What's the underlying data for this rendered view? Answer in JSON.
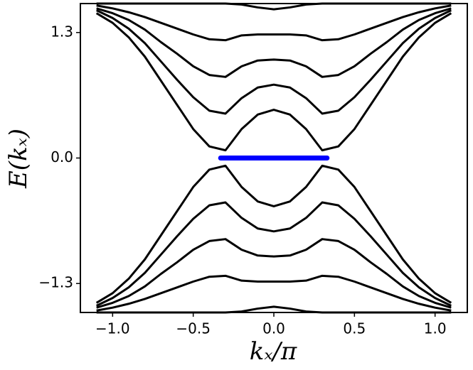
{
  "chart_data": {
    "type": "line",
    "xlabel": "kₓ/π",
    "ylabel": "E(kₓ)",
    "x": [
      -1.1,
      -1.0,
      -0.9,
      -0.8,
      -0.7,
      -0.6,
      -0.5,
      -0.4,
      -0.3,
      -0.2,
      -0.1,
      0.0,
      0.1,
      0.2,
      0.3,
      0.4,
      0.5,
      0.6,
      0.7,
      0.8,
      0.9,
      1.0,
      1.1
    ],
    "series": [
      {
        "color": "#000000",
        "values": [
          1.5,
          1.4,
          1.25,
          1.05,
          0.8,
          0.55,
          0.3,
          0.12,
          0.08,
          0.3,
          0.45,
          0.5,
          0.45,
          0.3,
          0.08,
          0.12,
          0.3,
          0.55,
          0.8,
          1.05,
          1.25,
          1.4,
          1.5
        ]
      },
      {
        "color": "#000000",
        "values": [
          1.53,
          1.45,
          1.34,
          1.19,
          1.0,
          0.81,
          0.63,
          0.49,
          0.46,
          0.62,
          0.73,
          0.76,
          0.73,
          0.62,
          0.46,
          0.49,
          0.63,
          0.81,
          1.0,
          1.19,
          1.34,
          1.45,
          1.53
        ]
      },
      {
        "color": "#000000",
        "values": [
          1.55,
          1.5,
          1.43,
          1.33,
          1.2,
          1.08,
          0.95,
          0.86,
          0.84,
          0.95,
          1.01,
          1.02,
          1.01,
          0.95,
          0.84,
          0.86,
          0.95,
          1.08,
          1.2,
          1.33,
          1.43,
          1.5,
          1.55
        ]
      },
      {
        "color": "#000000",
        "values": [
          1.58,
          1.55,
          1.51,
          1.46,
          1.4,
          1.34,
          1.28,
          1.23,
          1.22,
          1.27,
          1.28,
          1.28,
          1.28,
          1.27,
          1.22,
          1.23,
          1.28,
          1.34,
          1.4,
          1.46,
          1.51,
          1.55,
          1.58
        ]
      },
      {
        "color": "#000000",
        "values": [
          1.6,
          1.6,
          1.6,
          1.6,
          1.6,
          1.6,
          1.6,
          1.6,
          1.6,
          1.59,
          1.56,
          1.54,
          1.56,
          1.59,
          1.6,
          1.6,
          1.6,
          1.6,
          1.6,
          1.6,
          1.6,
          1.6,
          1.6
        ]
      },
      {
        "color": "#000000",
        "values": [
          -1.5,
          -1.4,
          -1.25,
          -1.05,
          -0.8,
          -0.55,
          -0.3,
          -0.12,
          -0.08,
          -0.3,
          -0.45,
          -0.5,
          -0.45,
          -0.3,
          -0.08,
          -0.12,
          -0.3,
          -0.55,
          -0.8,
          -1.05,
          -1.25,
          -1.4,
          -1.5
        ]
      },
      {
        "color": "#000000",
        "values": [
          -1.53,
          -1.45,
          -1.34,
          -1.19,
          -1.0,
          -0.81,
          -0.63,
          -0.49,
          -0.46,
          -0.62,
          -0.73,
          -0.76,
          -0.73,
          -0.62,
          -0.46,
          -0.49,
          -0.63,
          -0.81,
          -1.0,
          -1.19,
          -1.34,
          -1.45,
          -1.53
        ]
      },
      {
        "color": "#000000",
        "values": [
          -1.55,
          -1.5,
          -1.43,
          -1.33,
          -1.2,
          -1.08,
          -0.95,
          -0.86,
          -0.84,
          -0.95,
          -1.01,
          -1.02,
          -1.01,
          -0.95,
          -0.84,
          -0.86,
          -0.95,
          -1.08,
          -1.2,
          -1.33,
          -1.43,
          -1.5,
          -1.55
        ]
      },
      {
        "color": "#000000",
        "values": [
          -1.58,
          -1.55,
          -1.51,
          -1.46,
          -1.4,
          -1.34,
          -1.28,
          -1.23,
          -1.22,
          -1.27,
          -1.28,
          -1.28,
          -1.28,
          -1.27,
          -1.22,
          -1.23,
          -1.28,
          -1.34,
          -1.4,
          -1.46,
          -1.51,
          -1.55,
          -1.58
        ]
      },
      {
        "color": "#000000",
        "values": [
          -1.6,
          -1.6,
          -1.6,
          -1.6,
          -1.6,
          -1.6,
          -1.6,
          -1.6,
          -1.6,
          -1.59,
          -1.56,
          -1.54,
          -1.56,
          -1.59,
          -1.6,
          -1.6,
          -1.6,
          -1.6,
          -1.6,
          -1.6,
          -1.6,
          -1.6,
          -1.6
        ]
      },
      {
        "color": "#0000ff",
        "x": [
          -0.33,
          0.33
        ],
        "values": [
          0,
          0
        ]
      }
    ],
    "xlim": [
      -1.2,
      1.2
    ],
    "ylim": [
      -1.6,
      1.6
    ],
    "xticks": [
      {
        "value": -1.0,
        "label": "−1.0"
      },
      {
        "value": -0.5,
        "label": "−0.5"
      },
      {
        "value": 0,
        "label": "0.0"
      },
      0.5,
      {
        "value": 1.0,
        "label": "1.0"
      }
    ],
    "yticks": [
      {
        "value": -1.3,
        "label": "−1.3"
      },
      {
        "value": 0,
        "label": "0.0"
      },
      1.3
    ],
    "grid": false
  }
}
